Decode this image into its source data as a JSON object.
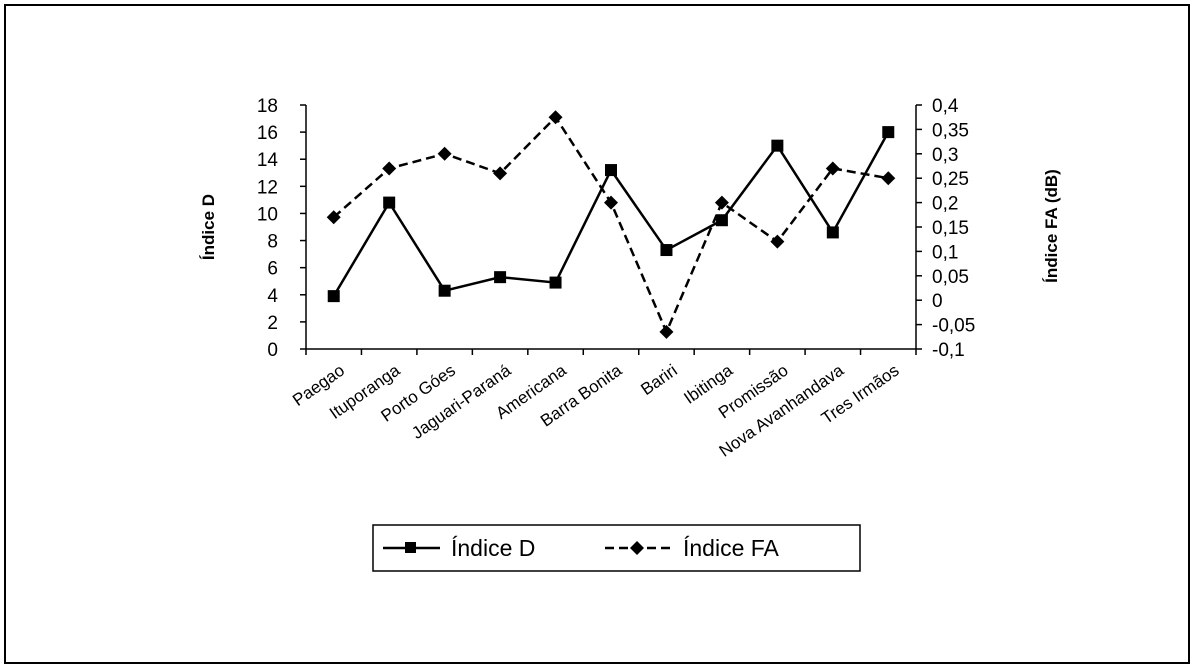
{
  "chart_data": {
    "type": "line",
    "categories": [
      "Paegao",
      "Ituporanga",
      "Porto Góes",
      "Jaguari-Paraná",
      "Americana",
      "Barra Bonita",
      "Bariri",
      "Ibitinga",
      "Promissão",
      "Nova Avanhandava",
      "Tres Irmãos"
    ],
    "series": [
      {
        "name": "Índice D",
        "axis": "left",
        "style": "solid",
        "marker": "square",
        "values": [
          3.9,
          10.8,
          4.3,
          5.3,
          4.9,
          13.2,
          7.3,
          9.5,
          15.0,
          8.6,
          16.0
        ]
      },
      {
        "name": "Índice FA",
        "axis": "right",
        "style": "dashed",
        "marker": "diamond",
        "values": [
          0.17,
          0.27,
          0.3,
          0.26,
          0.375,
          0.2,
          -0.065,
          0.2,
          0.12,
          0.27,
          0.25
        ]
      }
    ],
    "y_left": {
      "label": "Índice D",
      "ylim": [
        0,
        18
      ],
      "ticks": [
        "0",
        "2",
        "4",
        "6",
        "8",
        "10",
        "12",
        "14",
        "16",
        "18"
      ]
    },
    "y_right": {
      "label": "Índice FA (dB)",
      "ylim": [
        -0.1,
        0.4
      ],
      "ticks": [
        "-0,1",
        "-0,05",
        "0",
        "0,05",
        "0,1",
        "0,15",
        "0,2",
        "0,25",
        "0,3",
        "0,35",
        "0,4"
      ]
    },
    "grid": false,
    "legend": {
      "position": "bottom",
      "entries": [
        "Índice D",
        "Índice FA"
      ]
    }
  }
}
